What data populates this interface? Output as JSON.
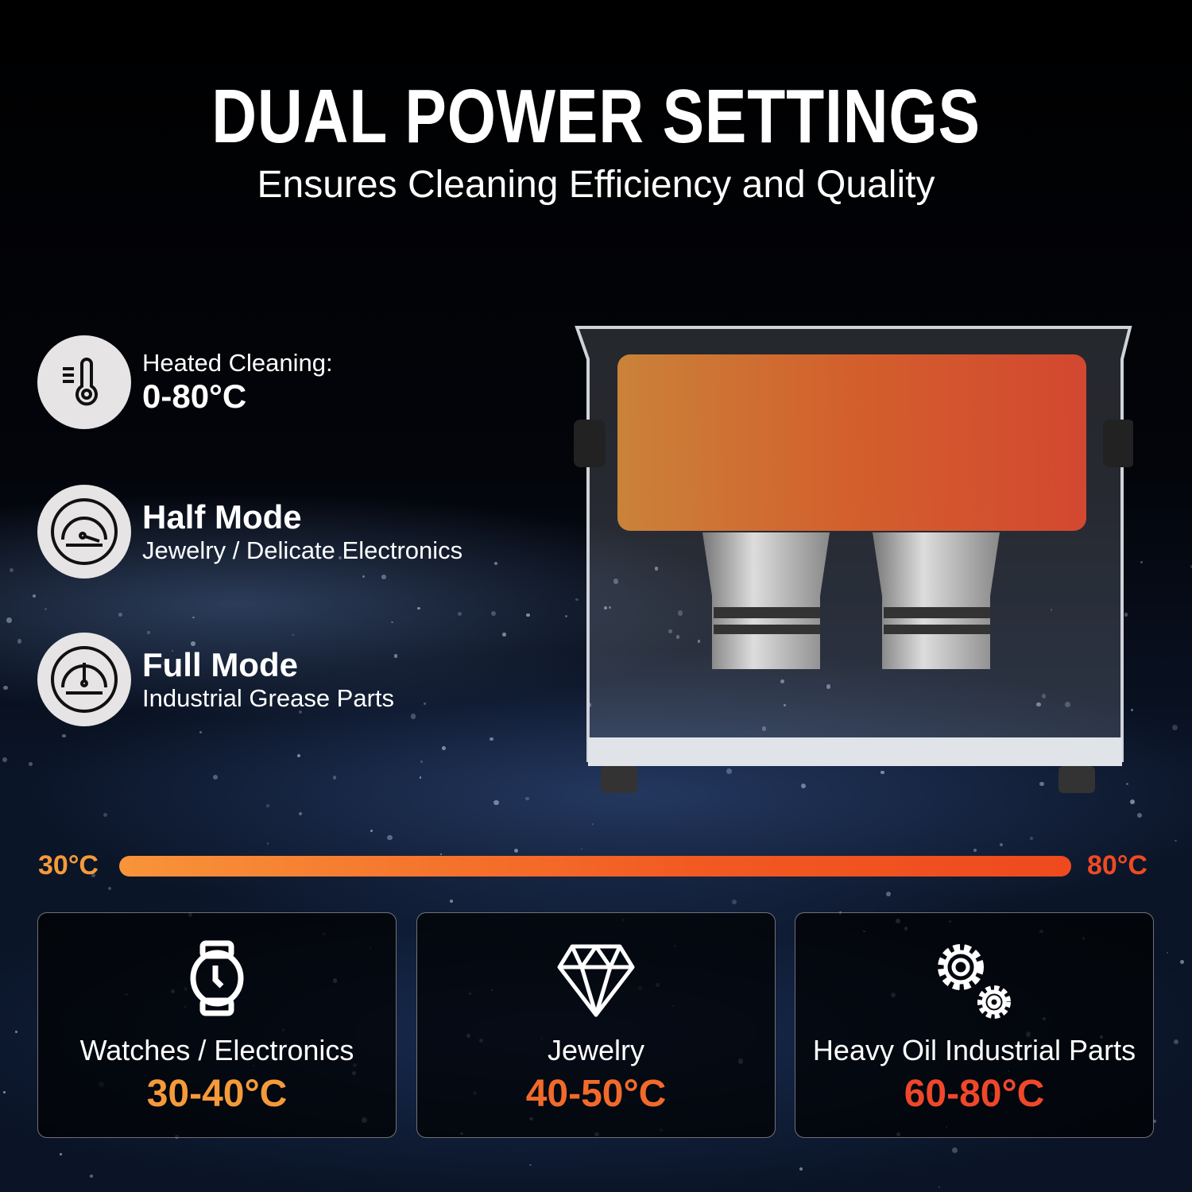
{
  "header": {
    "title": "DUAL POWER SETTINGS",
    "subtitle": "Ensures Cleaning Efficiency and Quality"
  },
  "features": [
    {
      "icon": "thermometer-icon",
      "label": "Heated Cleaning:",
      "value": "0-80°C"
    },
    {
      "icon": "half-gauge-icon",
      "label": "Half Mode",
      "desc": "Jewelry / Delicate Electronics"
    },
    {
      "icon": "full-gauge-icon",
      "label": "Full Mode",
      "desc": "Industrial Grease Parts"
    }
  ],
  "temperature_bar": {
    "min": "30°C",
    "max": "80°C",
    "colors": [
      "#f8943a",
      "#ee4a1e"
    ]
  },
  "cards": [
    {
      "icon": "watch-icon",
      "label": "Watches / Electronics",
      "range": "30-40°C",
      "color": "#f59a3a"
    },
    {
      "icon": "diamond-icon",
      "label": "Jewelry",
      "range": "40-50°C",
      "color": "#f26a2a"
    },
    {
      "icon": "gears-icon",
      "label": "Heavy Oil Industrial Parts",
      "range": "60-80°C",
      "color": "#f0472a"
    }
  ]
}
